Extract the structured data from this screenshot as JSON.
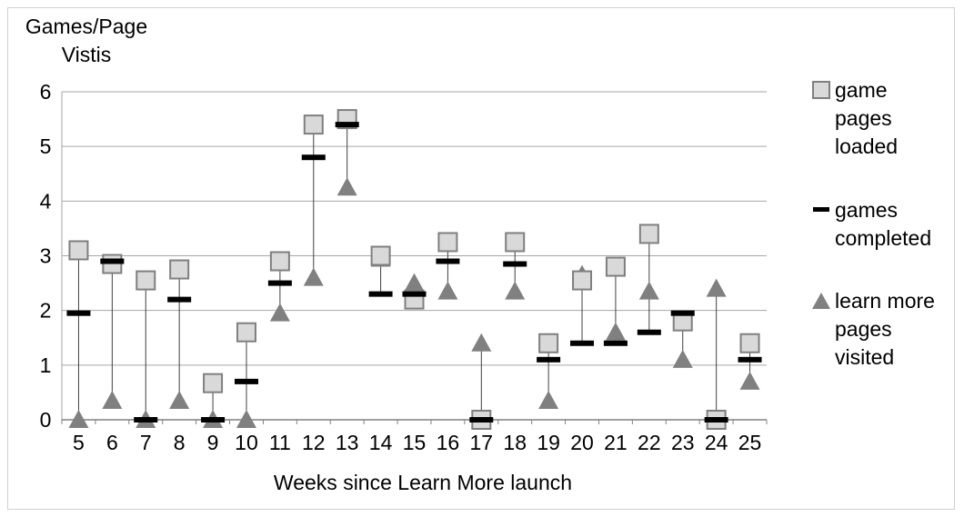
{
  "chart_data": {
    "type": "scatter",
    "ylabel": "Games/Page\nVistis",
    "xlabel": "Weeks since Learn More launch",
    "ylim": [
      0,
      6
    ],
    "yticks": [
      0,
      1,
      2,
      3,
      4,
      5,
      6
    ],
    "grid": true,
    "legend_position": "right",
    "categories": [
      "5",
      "6",
      "7",
      "8",
      "9",
      "10",
      "11",
      "12",
      "13",
      "14",
      "15",
      "16",
      "17",
      "18",
      "19",
      "20",
      "21",
      "22",
      "23",
      "24",
      "25"
    ],
    "series": [
      {
        "name": "game\npages\nloaded",
        "marker": "square",
        "color": "#d9d9d9",
        "values": [
          3.1,
          2.85,
          2.55,
          2.75,
          0.67,
          1.6,
          2.9,
          5.4,
          5.5,
          3.0,
          2.2,
          3.25,
          0.0,
          3.25,
          1.4,
          2.55,
          2.8,
          3.4,
          1.8,
          0.0,
          1.4
        ]
      },
      {
        "name": "games\ncompleted",
        "marker": "dash",
        "color": "#000000",
        "values": [
          1.95,
          2.9,
          0.0,
          2.2,
          0.0,
          0.7,
          2.5,
          4.8,
          5.4,
          2.3,
          2.3,
          2.9,
          0.0,
          2.85,
          1.1,
          1.4,
          1.4,
          1.6,
          1.95,
          0.0,
          1.1
        ]
      },
      {
        "name": "learn more\npages\nvisited",
        "marker": "triangle",
        "color": "#808080",
        "values": [
          0.0,
          0.35,
          0.0,
          0.35,
          0.0,
          0.0,
          1.95,
          2.6,
          4.25,
          2.95,
          2.5,
          2.35,
          1.4,
          2.35,
          0.35,
          2.65,
          1.6,
          2.35,
          1.1,
          2.4,
          0.7
        ]
      }
    ]
  }
}
